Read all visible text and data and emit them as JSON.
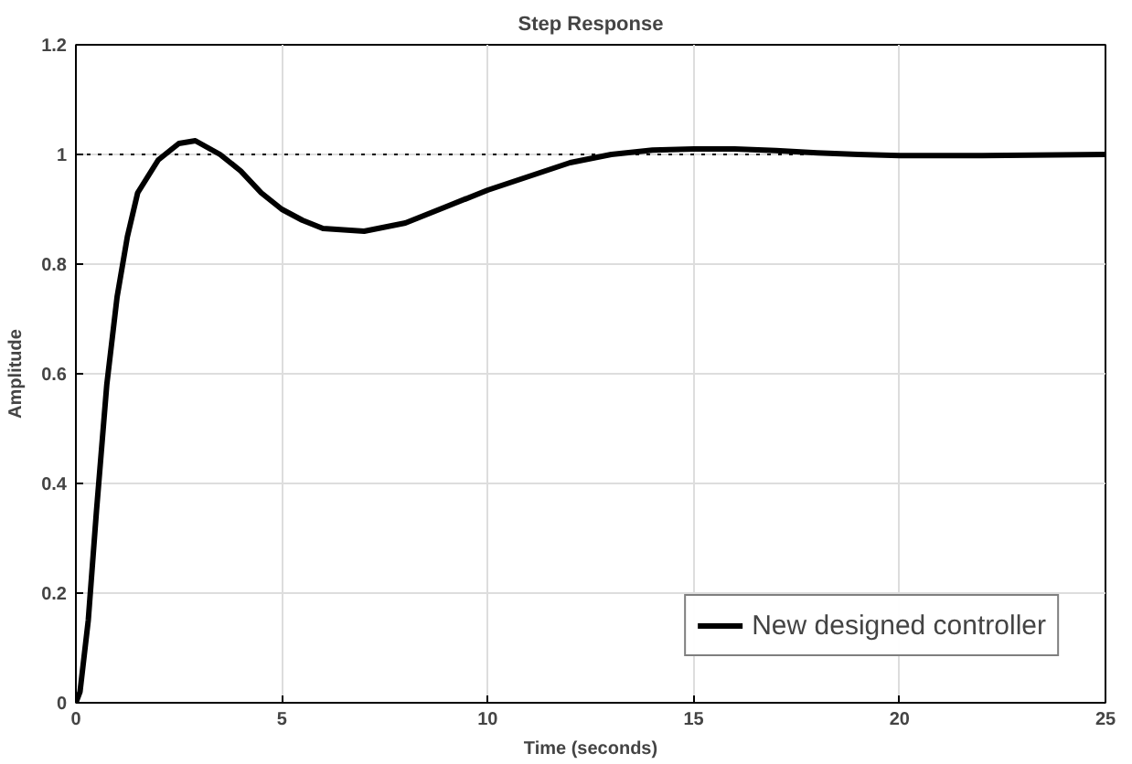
{
  "chart_data": {
    "type": "line",
    "title": "Step Response",
    "xlabel": "Time (seconds)",
    "ylabel": "Amplitude",
    "xlim": [
      0,
      25
    ],
    "ylim": [
      0,
      1.2
    ],
    "xticks": [
      0,
      5,
      10,
      15,
      20,
      25
    ],
    "yticks": [
      0,
      0.2,
      0.4,
      0.6,
      0.8,
      1,
      1.2
    ],
    "grid": true,
    "legend": "bottom right",
    "line_style": "solid",
    "ref_lines": [
      {
        "axis": "y",
        "value": 1,
        "line_style": "dotted",
        "color": "#000000"
      }
    ],
    "series": [
      {
        "name": "New designed controller",
        "color": "#000000",
        "x": [
          0,
          0.1,
          0.3,
          0.5,
          0.75,
          1.0,
          1.25,
          1.5,
          2.0,
          2.5,
          2.9,
          3.5,
          4,
          4.5,
          5,
          5.5,
          6,
          7,
          8,
          9,
          10,
          11,
          12,
          13,
          14,
          15,
          16,
          17,
          18,
          19,
          20,
          22,
          25
        ],
        "values": [
          0,
          0.02,
          0.15,
          0.35,
          0.58,
          0.74,
          0.85,
          0.93,
          0.99,
          1.02,
          1.025,
          1.0,
          0.97,
          0.93,
          0.9,
          0.88,
          0.865,
          0.86,
          0.875,
          0.905,
          0.935,
          0.96,
          0.985,
          1.0,
          1.008,
          1.01,
          1.01,
          1.007,
          1.003,
          1.0,
          0.998,
          0.998,
          1.0
        ]
      }
    ]
  }
}
